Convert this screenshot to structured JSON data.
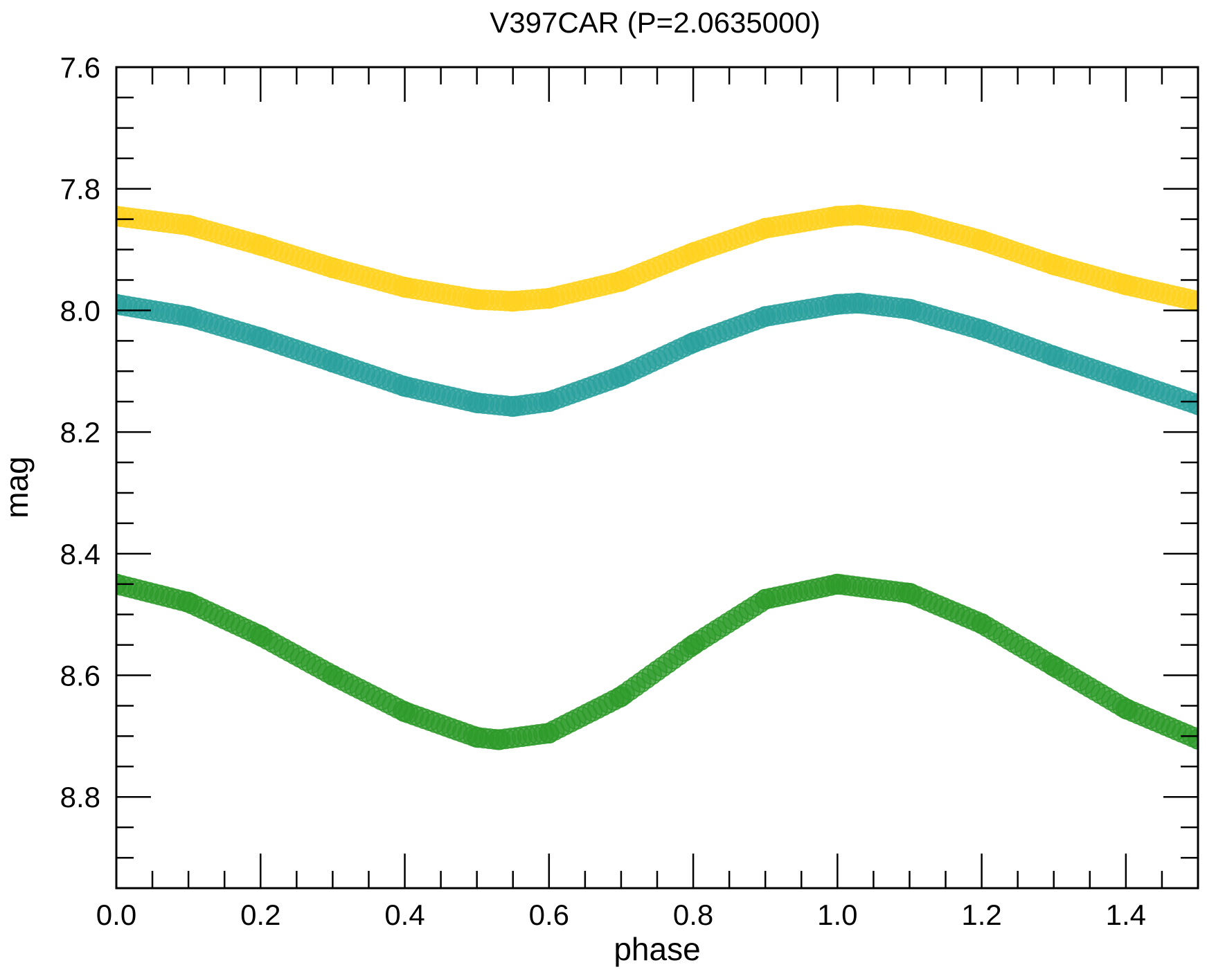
{
  "chart_data": {
    "type": "scatter",
    "title": "V397CAR (P=2.0635000)",
    "xlabel": "phase",
    "ylabel": "mag",
    "xlim": [
      0.0,
      1.5
    ],
    "ylim": [
      8.95,
      7.6
    ],
    "y_inverted": true,
    "grid": false,
    "legend": "none",
    "x_ticks": [
      "0.0",
      "0.2",
      "0.4",
      "0.6",
      "0.8",
      "1.0",
      "1.2",
      "1.4"
    ],
    "y_ticks": [
      "7.6",
      "7.8",
      "8.0",
      "8.2",
      "8.4",
      "8.6",
      "8.8"
    ],
    "series": [
      {
        "color": "#ffd21f",
        "x": [
          0.0,
          0.1,
          0.2,
          0.3,
          0.4,
          0.5,
          0.55,
          0.6,
          0.7,
          0.8,
          0.9,
          1.0,
          1.03,
          1.1,
          1.2,
          1.3,
          1.4,
          1.5
        ],
        "y": [
          7.845,
          7.86,
          7.893,
          7.93,
          7.962,
          7.982,
          7.985,
          7.98,
          7.952,
          7.905,
          7.865,
          7.845,
          7.843,
          7.853,
          7.885,
          7.925,
          7.958,
          7.985
        ]
      },
      {
        "color": "#2aa19c",
        "x": [
          0.0,
          0.1,
          0.2,
          0.3,
          0.4,
          0.5,
          0.55,
          0.6,
          0.7,
          0.8,
          0.9,
          1.0,
          1.03,
          1.1,
          1.2,
          1.3,
          1.4,
          1.5
        ],
        "y": [
          7.99,
          8.01,
          8.045,
          8.085,
          8.125,
          8.152,
          8.158,
          8.15,
          8.108,
          8.053,
          8.01,
          7.99,
          7.988,
          7.998,
          8.032,
          8.075,
          8.115,
          8.155
        ]
      },
      {
        "color": "#2e9a2a",
        "x": [
          0.0,
          0.1,
          0.2,
          0.3,
          0.4,
          0.5,
          0.53,
          0.6,
          0.7,
          0.8,
          0.9,
          1.0,
          1.1,
          1.2,
          1.3,
          1.4,
          1.5
        ],
        "y": [
          8.45,
          8.48,
          8.535,
          8.6,
          8.66,
          8.702,
          8.706,
          8.695,
          8.635,
          8.55,
          8.475,
          8.45,
          8.465,
          8.515,
          8.585,
          8.655,
          8.705
        ]
      }
    ]
  }
}
